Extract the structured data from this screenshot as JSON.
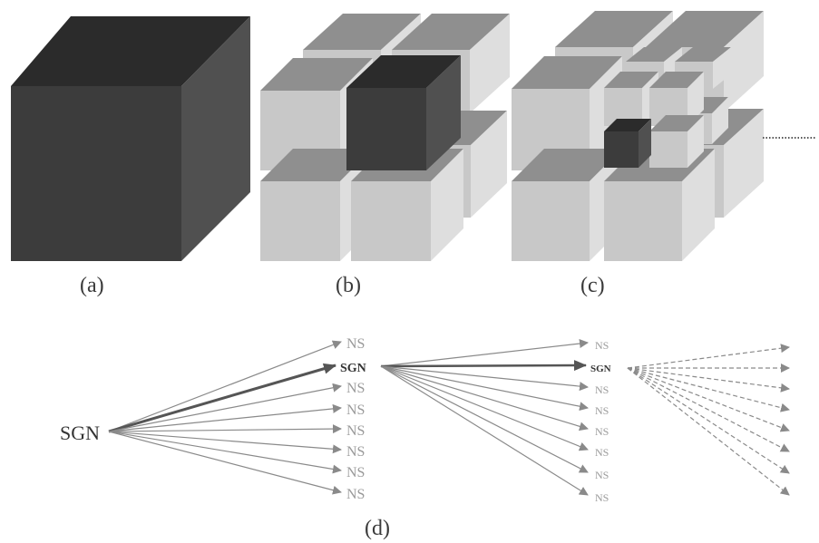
{
  "panels": {
    "a": {
      "label": "(a)"
    },
    "b": {
      "label": "(b)"
    },
    "c": {
      "label": "(c)"
    },
    "d": {
      "label": "(d)"
    }
  },
  "tree": {
    "root": "SGN",
    "level1": {
      "selected": "SGN",
      "others": [
        "NS",
        "NS",
        "NS",
        "NS",
        "NS",
        "NS",
        "NS"
      ]
    },
    "level2": {
      "selected": "SGN",
      "others": [
        "NS",
        "NS",
        "NS",
        "NS",
        "NS",
        "NS",
        "NS"
      ]
    }
  },
  "colors": {
    "dark_front": "#3c3c3c",
    "dark_top": "#2b2b2b",
    "dark_side": "#505050",
    "light_front": "#c8c8c8",
    "light_top": "#8f8f8f",
    "light_side": "#dedede",
    "ns_text": "#9a9a9a",
    "arrow": "#8a8a8a",
    "arrow_bold": "#555555"
  }
}
